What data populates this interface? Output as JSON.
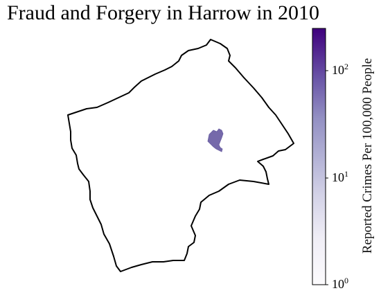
{
  "title": "Fraud and Forgery in Harrow in 2010",
  "colorbar": {
    "label": "Reported Crimes Per 100,000 People",
    "scale": "log",
    "range": [
      1,
      250
    ],
    "ticks": [
      {
        "base": "10",
        "exp": "0",
        "value": 1
      },
      {
        "base": "10",
        "exp": "1",
        "value": 10
      },
      {
        "base": "10",
        "exp": "2",
        "value": 100
      }
    ],
    "color_low": "#fcfbfd",
    "color_high": "#3f007d"
  },
  "map": {
    "borough": "Harrow",
    "highlighted_area_color": "#7569aa",
    "outline_color": "#000000"
  }
}
